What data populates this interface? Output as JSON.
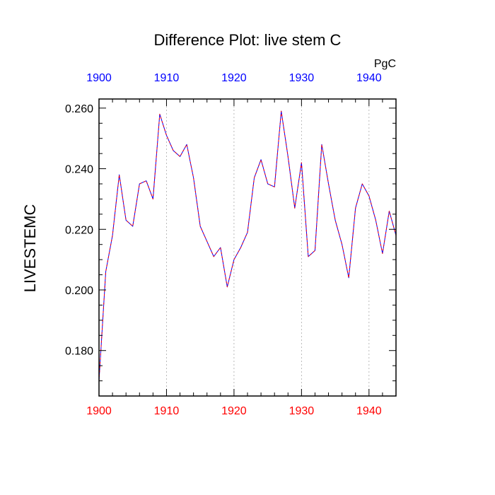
{
  "chart_data": {
    "type": "line",
    "title": "Difference Plot: live stem C",
    "units_label": "PgC",
    "ylabel": "LIVESTEMC",
    "xlabel": "",
    "xlim": [
      1900,
      1944
    ],
    "ylim": [
      0.165,
      0.263
    ],
    "x_ticks": [
      1900,
      1910,
      1920,
      1930,
      1940
    ],
    "x_tick_labels": [
      "1900",
      "1910",
      "1920",
      "1930",
      "1940"
    ],
    "y_ticks": [
      0.18,
      0.2,
      0.22,
      0.24,
      0.26
    ],
    "y_tick_labels": [
      "0.180",
      "0.200",
      "0.220",
      "0.240",
      "0.260"
    ],
    "grid": "vertical dashed at major x ticks",
    "colors": {
      "bottom_axis_labels": "#ff0000",
      "top_axis_labels": "#0000ff",
      "series_a": "#0000ff",
      "series_b": "#ff0000",
      "grid": "#aaaaaa"
    },
    "series": [
      {
        "x": [
          1900,
          1901,
          1902,
          1903,
          1904,
          1905,
          1906,
          1907,
          1908,
          1909,
          1910,
          1911,
          1912,
          1913,
          1914,
          1915,
          1916,
          1917,
          1918,
          1919,
          1920,
          1921,
          1922,
          1923,
          1924,
          1925,
          1926,
          1927,
          1928,
          1929,
          1930,
          1931,
          1932,
          1933,
          1934,
          1935,
          1936,
          1937,
          1938,
          1939,
          1940,
          1941,
          1942,
          1943,
          1944
        ],
        "values": [
          0.17,
          0.206,
          0.218,
          0.238,
          0.223,
          0.221,
          0.235,
          0.236,
          0.23,
          0.258,
          0.251,
          0.246,
          0.244,
          0.248,
          0.237,
          0.221,
          0.216,
          0.211,
          0.214,
          0.201,
          0.21,
          0.214,
          0.219,
          0.237,
          0.243,
          0.235,
          0.234,
          0.259,
          0.244,
          0.227,
          0.242,
          0.211,
          0.213,
          0.248,
          0.235,
          0.223,
          0.215,
          0.204,
          0.227,
          0.235,
          0.231,
          0.223,
          0.212,
          0.226,
          0.218
        ]
      },
      {
        "x": [
          1900,
          1901,
          1902,
          1903,
          1904,
          1905,
          1906,
          1907,
          1908,
          1909,
          1910,
          1911,
          1912,
          1913,
          1914,
          1915,
          1916,
          1917,
          1918,
          1919,
          1920,
          1921,
          1922,
          1923,
          1924,
          1925,
          1926,
          1927,
          1928,
          1929,
          1930,
          1931,
          1932,
          1933,
          1934,
          1935,
          1936,
          1937,
          1938,
          1939,
          1940,
          1941,
          1942,
          1943,
          1944
        ],
        "values": [
          0.17,
          0.206,
          0.218,
          0.238,
          0.223,
          0.221,
          0.235,
          0.236,
          0.23,
          0.258,
          0.251,
          0.246,
          0.244,
          0.248,
          0.237,
          0.221,
          0.216,
          0.211,
          0.214,
          0.201,
          0.21,
          0.214,
          0.219,
          0.237,
          0.243,
          0.235,
          0.234,
          0.259,
          0.244,
          0.227,
          0.242,
          0.211,
          0.213,
          0.248,
          0.235,
          0.223,
          0.215,
          0.204,
          0.227,
          0.235,
          0.231,
          0.223,
          0.212,
          0.226,
          0.218
        ]
      }
    ]
  }
}
